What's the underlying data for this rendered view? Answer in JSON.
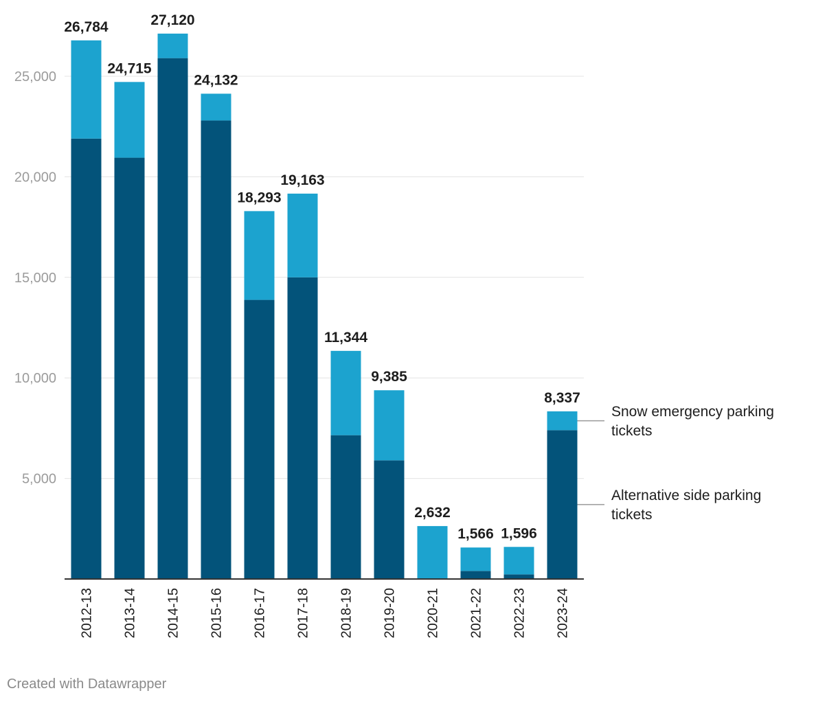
{
  "chart_data": {
    "type": "bar",
    "stacked": true,
    "title": "",
    "xlabel": "",
    "ylabel": "",
    "ylim": [
      0,
      27500
    ],
    "yticks": [
      5000,
      10000,
      15000,
      20000,
      25000
    ],
    "ytick_labels": [
      "5,000",
      "10,000",
      "15,000",
      "20,000",
      "25,000"
    ],
    "grid": true,
    "legend_position": "right",
    "categories": [
      "2012-13",
      "2013-14",
      "2014-15",
      "2015-16",
      "2016-17",
      "2017-18",
      "2018-19",
      "2019-20",
      "2020-21",
      "2021-22",
      "2022-23",
      "2023-24"
    ],
    "series": [
      {
        "name": "Alternative side parking tickets",
        "color": "#03537a",
        "values": [
          21900,
          20950,
          25900,
          22800,
          13880,
          15000,
          7150,
          5900,
          0,
          400,
          230,
          7400
        ]
      },
      {
        "name": "Snow emergency parking tickets",
        "color": "#1ca3cf",
        "values": [
          4884,
          3765,
          1220,
          1332,
          4413,
          4163,
          4194,
          3485,
          2632,
          1166,
          1366,
          937
        ]
      }
    ],
    "totals": [
      26784,
      24715,
      27120,
      24132,
      18293,
      19163,
      11344,
      9385,
      2632,
      1566,
      1596,
      8337
    ],
    "total_labels": [
      "26,784",
      "24,715",
      "27,120",
      "24,132",
      "18,293",
      "19,163",
      "11,344",
      "9,385",
      "2,632",
      "1,566",
      "1,596",
      "8,337"
    ],
    "legend": {
      "snow": [
        "Snow emergency parking",
        "tickets"
      ],
      "alt": [
        "Alternative side parking",
        "tickets"
      ]
    }
  },
  "footer": {
    "credit": "Created with Datawrapper"
  }
}
